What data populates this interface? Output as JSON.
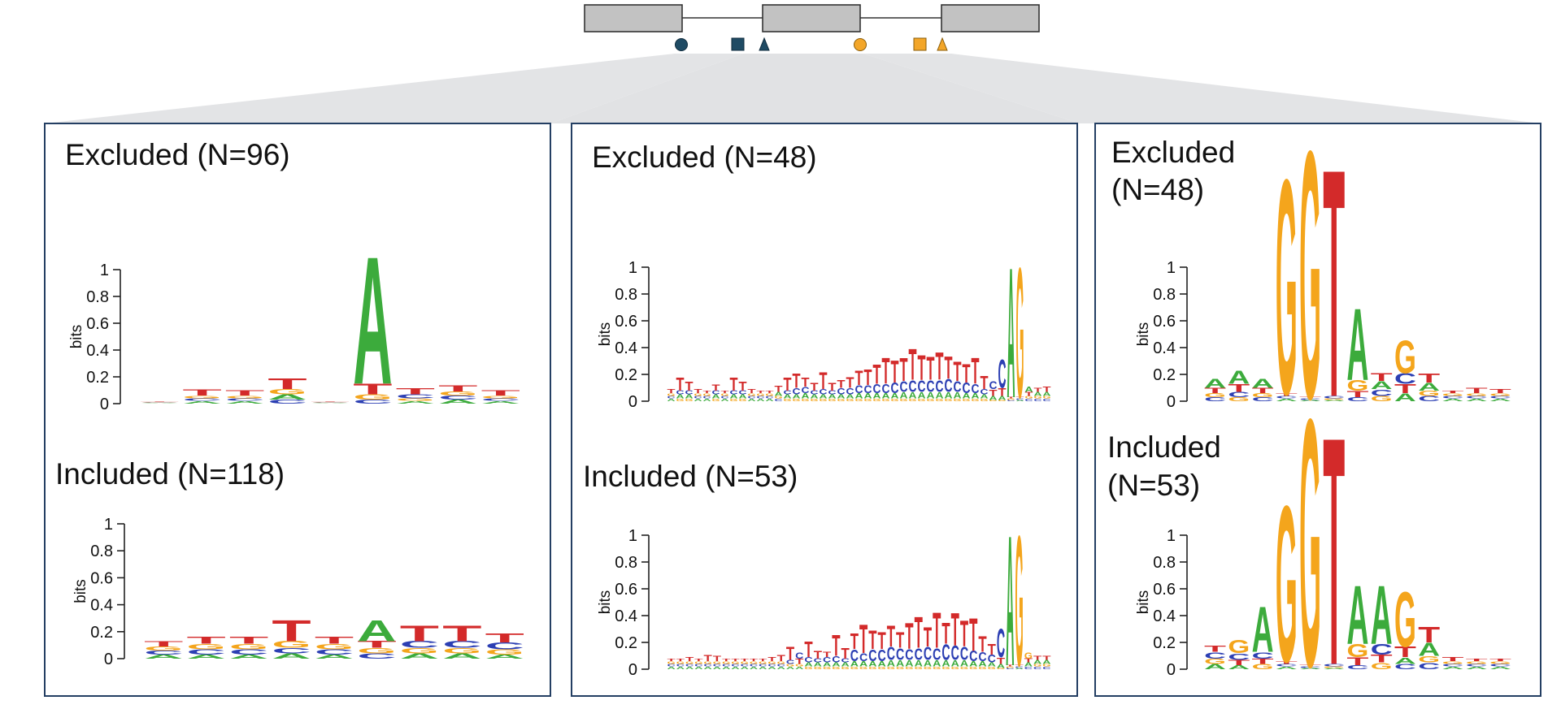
{
  "colors": {
    "A": "#3cab3c",
    "C": "#2c3fb3",
    "G": "#f4a51c",
    "T": "#d32a2a",
    "panel_border": "#243f63",
    "exon_fill": "#c2c2c2",
    "marker_blue": "#1f4b64",
    "marker_orange": "#f3a629",
    "fan_fill": "#e3e4e6"
  },
  "gene_model": {
    "exons": [
      "exon-1",
      "exon-2",
      "exon-3"
    ],
    "markers": [
      {
        "shape": "circle",
        "color": "blue"
      },
      {
        "shape": "square",
        "color": "blue"
      },
      {
        "shape": "triangle",
        "color": "blue"
      },
      {
        "shape": "circle",
        "color": "orange"
      },
      {
        "shape": "square",
        "color": "orange"
      },
      {
        "shape": "triangle",
        "color": "orange"
      }
    ]
  },
  "panels": [
    {
      "id": "panel-1",
      "logos": [
        {
          "title": [
            "Excluded (N=96)"
          ],
          "ylabel": "bits",
          "ylim": [
            0,
            1
          ],
          "yticks": [
            "1",
            "0.8",
            "0.6",
            "0.4",
            "0.2",
            "0"
          ],
          "positions": [
            {
              "A": 0.005,
              "C": 0.005,
              "G": 0.005,
              "T": 0.005
            },
            {
              "A": 0.02,
              "C": 0.02,
              "G": 0.02,
              "T": 0.05
            },
            {
              "A": 0.02,
              "C": 0.02,
              "G": 0.02,
              "T": 0.04
            },
            {
              "A": 0.04,
              "C": 0.03,
              "G": 0.04,
              "T": 0.08
            },
            {
              "A": 0.005,
              "C": 0.005,
              "G": 0.005,
              "T": 0.005
            },
            {
              "A": 0.98,
              "C": 0.03,
              "G": 0.04,
              "T": 0.08
            },
            {
              "A": 0.02,
              "C": 0.03,
              "G": 0.02,
              "T": 0.05
            },
            {
              "A": 0.03,
              "C": 0.03,
              "G": 0.03,
              "T": 0.05
            },
            {
              "A": 0.02,
              "C": 0.02,
              "G": 0.02,
              "T": 0.04
            }
          ]
        },
        {
          "title": [
            "Included (N=118)"
          ],
          "ylabel": "bits",
          "ylim": [
            0,
            1
          ],
          "yticks": [
            "1",
            "0.8",
            "0.6",
            "0.4",
            "0.2",
            "0"
          ],
          "positions": [
            {
              "A": 0.03,
              "C": 0.03,
              "G": 0.03,
              "T": 0.04
            },
            {
              "A": 0.03,
              "C": 0.04,
              "G": 0.04,
              "T": 0.05
            },
            {
              "A": 0.03,
              "C": 0.04,
              "G": 0.04,
              "T": 0.05
            },
            {
              "A": 0.04,
              "C": 0.04,
              "G": 0.05,
              "T": 0.16
            },
            {
              "A": 0.03,
              "C": 0.04,
              "G": 0.04,
              "T": 0.05
            },
            {
              "A": 0.16,
              "C": 0.04,
              "G": 0.04,
              "T": 0.05
            },
            {
              "A": 0.04,
              "C": 0.05,
              "G": 0.04,
              "T": 0.12
            },
            {
              "A": 0.04,
              "C": 0.05,
              "G": 0.04,
              "T": 0.12
            },
            {
              "A": 0.03,
              "C": 0.05,
              "G": 0.04,
              "T": 0.07
            }
          ]
        }
      ]
    },
    {
      "id": "panel-2",
      "logos": [
        {
          "title": [
            "Excluded (N=48)"
          ],
          "ylabel": "bits",
          "ylim": [
            0,
            1
          ],
          "yticks": [
            "1",
            "0.8",
            "0.6",
            "0.4",
            "0.2",
            "0"
          ],
          "positions": [
            {
              "A": 0.02,
              "C": 0.02,
              "G": 0.02,
              "T": 0.03
            },
            {
              "A": 0.03,
              "C": 0.03,
              "G": 0.02,
              "T": 0.1
            },
            {
              "A": 0.03,
              "C": 0.03,
              "G": 0.02,
              "T": 0.07
            },
            {
              "A": 0.02,
              "C": 0.02,
              "G": 0.02,
              "T": 0.03
            },
            {
              "A": 0.02,
              "C": 0.02,
              "G": 0.02,
              "T": 0.02
            },
            {
              "A": 0.03,
              "C": 0.03,
              "G": 0.02,
              "T": 0.05
            },
            {
              "A": 0.02,
              "C": 0.02,
              "G": 0.02,
              "T": 0.02
            },
            {
              "A": 0.03,
              "C": 0.03,
              "G": 0.02,
              "T": 0.1
            },
            {
              "A": 0.03,
              "C": 0.03,
              "G": 0.02,
              "T": 0.07
            },
            {
              "A": 0.02,
              "C": 0.02,
              "G": 0.02,
              "T": 0.03
            },
            {
              "A": 0.02,
              "C": 0.02,
              "G": 0.02,
              "T": 0.02
            },
            {
              "A": 0.02,
              "C": 0.02,
              "G": 0.02,
              "T": 0.02
            },
            {
              "A": 0.03,
              "C": 0.02,
              "G": 0.02,
              "T": 0.05
            },
            {
              "A": 0.03,
              "C": 0.03,
              "G": 0.02,
              "T": 0.1
            },
            {
              "A": 0.03,
              "C": 0.05,
              "G": 0.02,
              "T": 0.11
            },
            {
              "A": 0.04,
              "C": 0.05,
              "G": 0.02,
              "T": 0.07
            },
            {
              "A": 0.03,
              "C": 0.03,
              "G": 0.02,
              "T": 0.06
            },
            {
              "A": 0.03,
              "C": 0.04,
              "G": 0.02,
              "T": 0.13
            },
            {
              "A": 0.03,
              "C": 0.03,
              "G": 0.02,
              "T": 0.06
            },
            {
              "A": 0.03,
              "C": 0.05,
              "G": 0.02,
              "T": 0.06
            },
            {
              "A": 0.03,
              "C": 0.05,
              "G": 0.02,
              "T": 0.08
            },
            {
              "A": 0.04,
              "C": 0.06,
              "G": 0.02,
              "T": 0.11
            },
            {
              "A": 0.04,
              "C": 0.06,
              "G": 0.02,
              "T": 0.12
            },
            {
              "A": 0.04,
              "C": 0.07,
              "G": 0.02,
              "T": 0.15
            },
            {
              "A": 0.04,
              "C": 0.07,
              "G": 0.02,
              "T": 0.2
            },
            {
              "A": 0.04,
              "C": 0.08,
              "G": 0.02,
              "T": 0.17
            },
            {
              "A": 0.05,
              "C": 0.08,
              "G": 0.02,
              "T": 0.18
            },
            {
              "A": 0.05,
              "C": 0.09,
              "G": 0.02,
              "T": 0.24
            },
            {
              "A": 0.05,
              "C": 0.09,
              "G": 0.02,
              "T": 0.19
            },
            {
              "A": 0.05,
              "C": 0.09,
              "G": 0.02,
              "T": 0.18
            },
            {
              "A": 0.05,
              "C": 0.09,
              "G": 0.02,
              "T": 0.21
            },
            {
              "A": 0.05,
              "C": 0.1,
              "G": 0.02,
              "T": 0.17
            },
            {
              "A": 0.05,
              "C": 0.08,
              "G": 0.02,
              "T": 0.15
            },
            {
              "A": 0.04,
              "C": 0.08,
              "G": 0.02,
              "T": 0.14
            },
            {
              "A": 0.04,
              "C": 0.07,
              "G": 0.02,
              "T": 0.2
            },
            {
              "A": 0.03,
              "C": 0.04,
              "G": 0.02,
              "T": 0.1
            },
            {
              "A": 0.03,
              "C": 0.06,
              "G": 0.01,
              "T": 0.05
            },
            {
              "A": 0.03,
              "C": 0.22,
              "G": 0.01,
              "T": 0.06
            },
            {
              "A": 1.0,
              "C": 0.01,
              "G": 0.01,
              "T": 0.01
            },
            {
              "A": 0.01,
              "C": 0.01,
              "G": 1.0,
              "T": 0.01
            },
            {
              "A": 0.04,
              "C": 0.02,
              "G": 0.02,
              "T": 0.03
            },
            {
              "A": 0.03,
              "C": 0.02,
              "G": 0.02,
              "T": 0.03
            },
            {
              "A": 0.03,
              "C": 0.02,
              "G": 0.02,
              "T": 0.04
            }
          ]
        },
        {
          "title": [
            "Included (N=53)"
          ],
          "ylabel": "bits",
          "ylim": [
            0,
            1
          ],
          "yticks": [
            "1",
            "0.8",
            "0.6",
            "0.4",
            "0.2",
            "0"
          ],
          "positions": [
            {
              "A": 0.02,
              "C": 0.02,
              "G": 0.02,
              "T": 0.02
            },
            {
              "A": 0.02,
              "C": 0.02,
              "G": 0.02,
              "T": 0.02
            },
            {
              "A": 0.02,
              "C": 0.02,
              "G": 0.02,
              "T": 0.03
            },
            {
              "A": 0.02,
              "C": 0.02,
              "G": 0.02,
              "T": 0.02
            },
            {
              "A": 0.02,
              "C": 0.02,
              "G": 0.02,
              "T": 0.05
            },
            {
              "A": 0.02,
              "C": 0.02,
              "G": 0.02,
              "T": 0.04
            },
            {
              "A": 0.02,
              "C": 0.02,
              "G": 0.02,
              "T": 0.02
            },
            {
              "A": 0.02,
              "C": 0.02,
              "G": 0.02,
              "T": 0.02
            },
            {
              "A": 0.02,
              "C": 0.02,
              "G": 0.02,
              "T": 0.02
            },
            {
              "A": 0.02,
              "C": 0.02,
              "G": 0.02,
              "T": 0.02
            },
            {
              "A": 0.02,
              "C": 0.02,
              "G": 0.02,
              "T": 0.02
            },
            {
              "A": 0.02,
              "C": 0.02,
              "G": 0.02,
              "T": 0.03
            },
            {
              "A": 0.02,
              "C": 0.02,
              "G": 0.02,
              "T": 0.05
            },
            {
              "A": 0.02,
              "C": 0.03,
              "G": 0.02,
              "T": 0.1
            },
            {
              "A": 0.02,
              "C": 0.05,
              "G": 0.02,
              "T": 0.04
            },
            {
              "A": 0.03,
              "C": 0.04,
              "G": 0.02,
              "T": 0.12
            },
            {
              "A": 0.03,
              "C": 0.03,
              "G": 0.02,
              "T": 0.06
            },
            {
              "A": 0.03,
              "C": 0.04,
              "G": 0.02,
              "T": 0.04
            },
            {
              "A": 0.03,
              "C": 0.05,
              "G": 0.02,
              "T": 0.16
            },
            {
              "A": 0.03,
              "C": 0.03,
              "G": 0.02,
              "T": 0.08
            },
            {
              "A": 0.04,
              "C": 0.09,
              "G": 0.02,
              "T": 0.12
            },
            {
              "A": 0.04,
              "C": 0.06,
              "G": 0.02,
              "T": 0.22
            },
            {
              "A": 0.04,
              "C": 0.09,
              "G": 0.02,
              "T": 0.14
            },
            {
              "A": 0.04,
              "C": 0.09,
              "G": 0.02,
              "T": 0.13
            },
            {
              "A": 0.05,
              "C": 0.1,
              "G": 0.02,
              "T": 0.16
            },
            {
              "A": 0.05,
              "C": 0.09,
              "G": 0.02,
              "T": 0.12
            },
            {
              "A": 0.05,
              "C": 0.08,
              "G": 0.02,
              "T": 0.2
            },
            {
              "A": 0.05,
              "C": 0.09,
              "G": 0.02,
              "T": 0.24
            },
            {
              "A": 0.05,
              "C": 0.1,
              "G": 0.02,
              "T": 0.15
            },
            {
              "A": 0.05,
              "C": 0.09,
              "G": 0.02,
              "T": 0.27
            },
            {
              "A": 0.05,
              "C": 0.12,
              "G": 0.02,
              "T": 0.16
            },
            {
              "A": 0.05,
              "C": 0.11,
              "G": 0.02,
              "T": 0.25
            },
            {
              "A": 0.05,
              "C": 0.1,
              "G": 0.02,
              "T": 0.2
            },
            {
              "A": 0.04,
              "C": 0.08,
              "G": 0.02,
              "T": 0.25
            },
            {
              "A": 0.04,
              "C": 0.07,
              "G": 0.02,
              "T": 0.12
            },
            {
              "A": 0.03,
              "C": 0.06,
              "G": 0.02,
              "T": 0.08
            },
            {
              "A": 0.03,
              "C": 0.22,
              "G": 0.01,
              "T": 0.05
            },
            {
              "A": 1.0,
              "C": 0.01,
              "G": 0.01,
              "T": 0.01
            },
            {
              "A": 0.01,
              "C": 0.01,
              "G": 1.0,
              "T": 0.01
            },
            {
              "A": 0.03,
              "C": 0.02,
              "G": 0.05,
              "T": 0.03
            },
            {
              "A": 0.03,
              "C": 0.02,
              "G": 0.02,
              "T": 0.03
            },
            {
              "A": 0.03,
              "C": 0.02,
              "G": 0.02,
              "T": 0.03
            }
          ]
        }
      ]
    },
    {
      "id": "panel-3",
      "logos": [
        {
          "title": [
            "Excluded",
            "(N=48)"
          ],
          "ylabel": "bits",
          "ylim": [
            0,
            1
          ],
          "yticks": [
            "1",
            "0.8",
            "0.6",
            "0.4",
            "0.2",
            "0"
          ],
          "positions": [
            {
              "A": 0.07,
              "C": 0.03,
              "G": 0.03,
              "T": 0.04
            },
            {
              "A": 0.1,
              "C": 0.04,
              "G": 0.03,
              "T": 0.06
            },
            {
              "A": 0.07,
              "C": 0.03,
              "G": 0.03,
              "T": 0.04
            },
            {
              "A": 0.02,
              "C": 0.02,
              "G": 1.65,
              "T": 0.02
            },
            {
              "A": 0.01,
              "C": 0.01,
              "G": 1.9,
              "T": 0.01
            },
            {
              "A": 0.01,
              "C": 0.02,
              "G": 0.01,
              "T": 1.75
            },
            {
              "A": 0.55,
              "C": 0.03,
              "G": 0.08,
              "T": 0.05
            },
            {
              "A": 0.06,
              "C": 0.05,
              "G": 0.04,
              "T": 0.06
            },
            {
              "A": 0.06,
              "C": 0.08,
              "G": 0.25,
              "T": 0.07
            },
            {
              "A": 0.06,
              "C": 0.04,
              "G": 0.04,
              "T": 0.07
            },
            {
              "A": 0.02,
              "C": 0.02,
              "G": 0.02,
              "T": 0.02
            },
            {
              "A": 0.02,
              "C": 0.02,
              "G": 0.02,
              "T": 0.04
            },
            {
              "A": 0.02,
              "C": 0.02,
              "G": 0.02,
              "T": 0.03
            }
          ]
        },
        {
          "title": [
            "Included",
            "(N=53)"
          ],
          "ylabel": "bits",
          "ylim": [
            0,
            1
          ],
          "yticks": [
            "1",
            "0.8",
            "0.6",
            "0.4",
            "0.2",
            "0"
          ],
          "positions": [
            {
              "A": 0.04,
              "C": 0.05,
              "G": 0.04,
              "T": 0.05
            },
            {
              "A": 0.03,
              "C": 0.05,
              "G": 0.1,
              "T": 0.04
            },
            {
              "A": 0.35,
              "C": 0.05,
              "G": 0.04,
              "T": 0.04
            },
            {
              "A": 0.02,
              "C": 0.02,
              "G": 1.2,
              "T": 0.02
            },
            {
              "A": 0.01,
              "C": 0.01,
              "G": 1.9,
              "T": 0.01
            },
            {
              "A": 0.01,
              "C": 0.02,
              "G": 0.01,
              "T": 1.75
            },
            {
              "A": 0.45,
              "C": 0.03,
              "G": 0.1,
              "T": 0.06
            },
            {
              "A": 0.45,
              "C": 0.08,
              "G": 0.05,
              "T": 0.06
            },
            {
              "A": 0.05,
              "C": 0.04,
              "G": 0.42,
              "T": 0.08
            },
            {
              "A": 0.1,
              "C": 0.05,
              "G": 0.05,
              "T": 0.12
            },
            {
              "A": 0.02,
              "C": 0.02,
              "G": 0.02,
              "T": 0.03
            },
            {
              "A": 0.02,
              "C": 0.02,
              "G": 0.02,
              "T": 0.02
            },
            {
              "A": 0.02,
              "C": 0.02,
              "G": 0.02,
              "T": 0.02
            }
          ]
        }
      ]
    }
  ]
}
